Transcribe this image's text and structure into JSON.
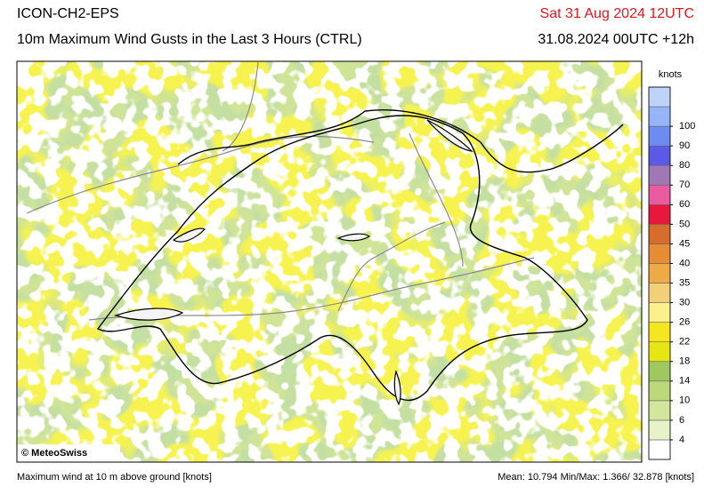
{
  "header": {
    "model": "ICON-CH2-EPS",
    "title": "10m Maximum Wind Gusts in the Last 3 Hours (CTRL)",
    "valid_time": "Sat 31 Aug 2024 12UTC",
    "run": "31.08.2024 00UTC +12h"
  },
  "colorbar": {
    "unit": "knots",
    "levels": [
      4,
      6,
      10,
      14,
      18,
      22,
      26,
      30,
      35,
      40,
      45,
      50,
      60,
      70,
      80,
      90,
      100
    ],
    "colors": [
      "#ffffff",
      "#e8f2c8",
      "#d2e69c",
      "#bcd87a",
      "#a0c860",
      "#e6e614",
      "#f5e61e",
      "#fcf08c",
      "#f2d078",
      "#eeaa46",
      "#e68c34",
      "#d86c2c",
      "#e8183c",
      "#ea5aa0",
      "#a078b4",
      "#5a5ae6",
      "#6e8cf0",
      "#96b4f8",
      "#bed2fa"
    ]
  },
  "map": {
    "copyright": "© MeteoSwiss"
  },
  "footer": {
    "description": "Maximum wind at 10 m above ground [knots]",
    "stats": "Mean:  10.794 Min/Max:  1.366/ 32.878 [knots]"
  }
}
